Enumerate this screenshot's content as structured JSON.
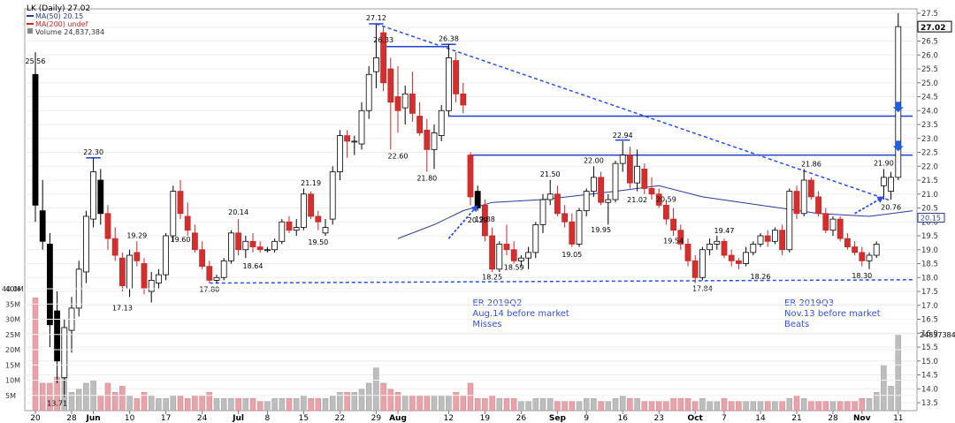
{
  "chart_data": {
    "type": "candlestick",
    "title": "LK (Daily) 27.02",
    "legend": [
      {
        "name": "MA(50) 20.15",
        "color": "#2b3a8f"
      },
      {
        "name": "MA(200) undef",
        "color": "#c62828"
      },
      {
        "name": "Volume 24,837,384",
        "color": "#888888"
      }
    ],
    "price_axis": {
      "min": 13.5,
      "max": 27.5,
      "step": 0.5,
      "side": "right"
    },
    "volume_axis": {
      "max": 40,
      "ticks": [
        "5M",
        "10M",
        "15M",
        "20M",
        "25M",
        "30M",
        "35M",
        "40M"
      ]
    },
    "x_labels": [
      {
        "label": "20",
        "i": 0
      },
      {
        "label": "28",
        "i": 5
      },
      {
        "label": "Jun",
        "i": 8
      },
      {
        "label": "10",
        "i": 13
      },
      {
        "label": "17",
        "i": 18
      },
      {
        "label": "24",
        "i": 23
      },
      {
        "label": "Jul",
        "i": 28
      },
      {
        "label": "8",
        "i": 32
      },
      {
        "label": "15",
        "i": 37
      },
      {
        "label": "22",
        "i": 42
      },
      {
        "label": "29",
        "i": 47
      },
      {
        "label": "Aug",
        "i": 50
      },
      {
        "label": "12",
        "i": 57
      },
      {
        "label": "19",
        "i": 62
      },
      {
        "label": "26",
        "i": 67
      },
      {
        "label": "Sep",
        "i": 72
      },
      {
        "label": "9",
        "i": 76
      },
      {
        "label": "16",
        "i": 81
      },
      {
        "label": "23",
        "i": 86
      },
      {
        "label": "Oct",
        "i": 91
      },
      {
        "label": "7",
        "i": 95
      },
      {
        "label": "14",
        "i": 100
      },
      {
        "label": "21",
        "i": 105
      },
      {
        "label": "28",
        "i": 110
      },
      {
        "label": "Nov",
        "i": 114
      },
      {
        "label": "11",
        "i": 119
      }
    ],
    "candles": [
      [
        25.3,
        26.1,
        20.0,
        20.6,
        1
      ],
      [
        20.4,
        21.5,
        19.0,
        19.3,
        1
      ],
      [
        19.2,
        19.6,
        15.5,
        16.3,
        1
      ],
      [
        16.8,
        17.5,
        14.2,
        15.0,
        1
      ],
      [
        14.4,
        16.5,
        13.7,
        16.2,
        0
      ],
      [
        16.1,
        17.3,
        15.3,
        16.9,
        0
      ],
      [
        16.9,
        18.6,
        16.6,
        18.3,
        0
      ],
      [
        18.2,
        20.4,
        17.8,
        20.2,
        0
      ],
      [
        20.1,
        22.3,
        19.8,
        21.8,
        1
      ],
      [
        21.5,
        21.9,
        19.9,
        20.3,
        1
      ],
      [
        20.3,
        20.6,
        19.0,
        19.4,
        1
      ],
      [
        19.4,
        19.8,
        18.6,
        18.8,
        1
      ],
      [
        18.7,
        18.9,
        17.5,
        17.7,
        1
      ],
      [
        17.6,
        19.0,
        17.3,
        18.8,
        0
      ],
      [
        18.9,
        19.3,
        18.4,
        18.6,
        1
      ],
      [
        18.5,
        18.7,
        17.4,
        17.6,
        1
      ],
      [
        17.5,
        18.2,
        17.1,
        17.9,
        0
      ],
      [
        17.8,
        18.3,
        17.6,
        18.1,
        0
      ],
      [
        18.1,
        19.6,
        17.9,
        19.5,
        0
      ],
      [
        19.5,
        21.3,
        19.3,
        21.1,
        0
      ],
      [
        21.1,
        21.5,
        20.1,
        20.3,
        1
      ],
      [
        20.2,
        20.7,
        19.5,
        19.7,
        1
      ],
      [
        19.6,
        19.9,
        18.9,
        19.0,
        1
      ],
      [
        19.0,
        19.3,
        18.3,
        18.4,
        1
      ],
      [
        18.4,
        18.6,
        17.8,
        17.9,
        1
      ],
      [
        17.9,
        18.1,
        17.8,
        18.0,
        0
      ],
      [
        18.0,
        18.7,
        17.9,
        18.6,
        0
      ],
      [
        18.6,
        19.7,
        18.5,
        19.6,
        0
      ],
      [
        19.6,
        20.1,
        18.8,
        19.0,
        1
      ],
      [
        19.0,
        19.5,
        18.7,
        19.3,
        0
      ],
      [
        19.3,
        19.6,
        18.9,
        19.1,
        1
      ],
      [
        19.1,
        19.3,
        18.9,
        19.0,
        1
      ],
      [
        19.0,
        19.1,
        18.9,
        19.0,
        0
      ],
      [
        19.0,
        19.4,
        18.9,
        19.3,
        0
      ],
      [
        19.3,
        20.1,
        19.2,
        20.0,
        0
      ],
      [
        20.0,
        20.2,
        19.6,
        19.7,
        1
      ],
      [
        19.7,
        20.1,
        19.5,
        19.8,
        0
      ],
      [
        19.8,
        21.2,
        19.7,
        21.0,
        0
      ],
      [
        21.0,
        21.1,
        20.1,
        20.2,
        1
      ],
      [
        20.2,
        20.4,
        19.7,
        20.0,
        1
      ],
      [
        19.6,
        20.1,
        19.5,
        19.8,
        0
      ],
      [
        20.1,
        22.0,
        19.9,
        21.8,
        0
      ],
      [
        21.8,
        23.3,
        21.5,
        23.1,
        0
      ],
      [
        23.1,
        23.3,
        22.3,
        22.9,
        1
      ],
      [
        22.9,
        23.1,
        22.4,
        22.9,
        0
      ],
      [
        22.8,
        24.3,
        22.6,
        24.0,
        0
      ],
      [
        24.0,
        25.6,
        23.7,
        25.3,
        0
      ],
      [
        25.4,
        27.1,
        24.8,
        25.9,
        0
      ],
      [
        26.8,
        27.0,
        24.7,
        25.0,
        1
      ],
      [
        25.5,
        25.9,
        22.6,
        24.3,
        1
      ],
      [
        24.5,
        25.6,
        23.2,
        24.0,
        1
      ],
      [
        24.1,
        24.9,
        23.5,
        24.6,
        0
      ],
      [
        24.6,
        25.4,
        23.6,
        23.9,
        1
      ],
      [
        23.8,
        24.3,
        23.1,
        23.2,
        1
      ],
      [
        23.3,
        23.7,
        21.8,
        22.6,
        1
      ],
      [
        22.6,
        23.5,
        21.9,
        23.2,
        0
      ],
      [
        23.1,
        24.2,
        22.9,
        24.0,
        0
      ],
      [
        24.0,
        26.4,
        23.8,
        25.9,
        0
      ],
      [
        25.8,
        26.1,
        24.3,
        24.6,
        1
      ],
      [
        24.6,
        25.0,
        23.9,
        24.2,
        1
      ],
      [
        22.4,
        22.5,
        20.6,
        20.9,
        1
      ],
      [
        21.1,
        21.3,
        20.4,
        20.5,
        0
      ],
      [
        20.6,
        20.8,
        19.3,
        19.5,
        1
      ],
      [
        19.5,
        19.8,
        18.2,
        18.3,
        1
      ],
      [
        18.3,
        19.3,
        18.2,
        19.2,
        0
      ],
      [
        19.2,
        19.9,
        18.8,
        19.0,
        1
      ],
      [
        19.0,
        19.3,
        18.5,
        18.6,
        1
      ],
      [
        18.6,
        18.8,
        18.4,
        18.7,
        0
      ],
      [
        18.7,
        19.1,
        18.3,
        18.9,
        0
      ],
      [
        18.9,
        20.0,
        18.7,
        19.9,
        0
      ],
      [
        19.9,
        21.0,
        19.6,
        20.8,
        0
      ],
      [
        20.8,
        21.5,
        20.6,
        21.0,
        0
      ],
      [
        21.0,
        21.3,
        20.2,
        20.3,
        1
      ],
      [
        20.3,
        20.6,
        19.8,
        20.0,
        1
      ],
      [
        20.0,
        20.3,
        19.1,
        19.2,
        1
      ],
      [
        19.2,
        20.5,
        19.1,
        20.4,
        0
      ],
      [
        20.4,
        21.2,
        20.2,
        21.1,
        0
      ],
      [
        21.1,
        22.0,
        20.9,
        21.6,
        0
      ],
      [
        21.6,
        21.8,
        20.6,
        20.7,
        1
      ],
      [
        20.7,
        21.0,
        19.9,
        20.8,
        0
      ],
      [
        20.8,
        22.2,
        20.7,
        22.1,
        0
      ],
      [
        22.1,
        22.9,
        21.8,
        22.4,
        0
      ],
      [
        22.4,
        22.7,
        21.2,
        21.4,
        1
      ],
      [
        21.4,
        22.6,
        21.1,
        22.0,
        0
      ],
      [
        21.9,
        22.1,
        21.0,
        21.2,
        1
      ],
      [
        21.2,
        21.6,
        20.8,
        21.0,
        1
      ],
      [
        21.0,
        21.2,
        20.5,
        20.6,
        1
      ],
      [
        20.6,
        20.8,
        19.9,
        20.1,
        1
      ],
      [
        20.1,
        20.5,
        19.5,
        19.7,
        1
      ],
      [
        19.7,
        19.9,
        19.0,
        19.2,
        1
      ],
      [
        19.2,
        19.4,
        18.4,
        18.6,
        1
      ],
      [
        18.6,
        18.8,
        17.8,
        18.0,
        1
      ],
      [
        18.0,
        19.1,
        17.9,
        19.0,
        0
      ],
      [
        19.0,
        19.4,
        18.8,
        19.2,
        0
      ],
      [
        19.2,
        19.5,
        19.0,
        19.3,
        0
      ],
      [
        19.3,
        19.4,
        18.7,
        18.8,
        1
      ],
      [
        18.8,
        19.0,
        18.4,
        18.6,
        1
      ],
      [
        18.6,
        18.7,
        18.3,
        18.5,
        1
      ],
      [
        18.5,
        19.1,
        18.4,
        18.9,
        0
      ],
      [
        18.9,
        19.3,
        18.8,
        19.2,
        0
      ],
      [
        19.2,
        19.6,
        19.1,
        19.5,
        0
      ],
      [
        19.5,
        19.7,
        19.1,
        19.3,
        1
      ],
      [
        19.3,
        19.8,
        19.2,
        19.7,
        0
      ],
      [
        19.7,
        19.9,
        18.8,
        19.0,
        1
      ],
      [
        19.0,
        21.2,
        18.9,
        21.1,
        0
      ],
      [
        21.1,
        21.3,
        20.1,
        20.3,
        1
      ],
      [
        20.3,
        21.9,
        20.2,
        21.5,
        0
      ],
      [
        21.5,
        21.6,
        20.8,
        20.9,
        1
      ],
      [
        20.9,
        21.1,
        20.2,
        20.3,
        1
      ],
      [
        20.3,
        20.5,
        19.6,
        19.7,
        1
      ],
      [
        19.7,
        20.2,
        19.5,
        20.1,
        0
      ],
      [
        20.1,
        20.2,
        19.3,
        19.4,
        1
      ],
      [
        19.4,
        19.6,
        19.0,
        19.1,
        1
      ],
      [
        19.1,
        19.3,
        18.8,
        18.9,
        1
      ],
      [
        18.9,
        19.1,
        18.4,
        18.6,
        1
      ],
      [
        18.6,
        18.9,
        18.3,
        18.8,
        0
      ],
      [
        18.8,
        19.3,
        18.7,
        19.2,
        0
      ],
      [
        21.3,
        21.9,
        20.8,
        21.6,
        1
      ],
      [
        21.1,
        21.8,
        20.8,
        21.6,
        0
      ],
      [
        21.6,
        27.5,
        21.5,
        27.02,
        0
      ]
    ],
    "volumes": [
      37,
      9,
      9,
      11,
      13,
      6,
      7,
      9,
      10,
      5,
      9,
      6,
      8,
      5,
      4,
      6,
      5,
      4,
      4,
      5,
      5,
      4,
      5,
      5,
      6,
      4,
      4,
      4,
      4,
      4,
      4,
      3,
      3,
      4,
      4,
      4,
      4,
      5,
      4,
      4,
      4,
      5,
      6,
      6,
      6,
      7,
      9,
      14,
      9,
      7,
      6,
      5,
      5,
      5,
      5,
      5,
      5,
      5,
      6,
      5,
      9,
      4,
      4,
      5,
      4,
      4,
      4,
      3,
      3,
      4,
      4,
      4,
      3,
      3,
      3,
      3,
      4,
      4,
      3,
      3,
      4,
      5,
      4,
      4,
      3,
      3,
      3,
      3,
      4,
      4,
      4,
      3,
      4,
      3,
      3,
      4,
      3,
      3,
      3,
      3,
      3,
      3,
      3,
      3,
      4,
      5,
      4,
      3,
      3,
      3,
      3,
      3,
      3,
      3,
      4,
      4,
      6,
      15,
      8,
      25
    ],
    "price_labels": [
      {
        "text": "27.12",
        "i": 47,
        "v": 27.12,
        "pos": "above"
      },
      {
        "text": "26.33",
        "i": 48,
        "v": 26.33,
        "pos": "above"
      },
      {
        "text": "26.38",
        "i": 57,
        "v": 26.38,
        "pos": "above"
      },
      {
        "text": "22.30",
        "i": 8,
        "v": 22.3,
        "pos": "above"
      },
      {
        "text": "22.94",
        "i": 81,
        "v": 22.9,
        "pos": "above"
      },
      {
        "text": "22.00",
        "i": 77,
        "v": 22.0,
        "pos": "above"
      },
      {
        "text": "21.86",
        "i": 107,
        "v": 21.86,
        "pos": "above"
      },
      {
        "text": "21.90",
        "i": 117,
        "v": 21.9,
        "pos": "above"
      },
      {
        "text": "21.50",
        "i": 71,
        "v": 21.5,
        "pos": "above"
      },
      {
        "text": "21.19",
        "i": 38,
        "v": 21.19,
        "pos": "above"
      },
      {
        "text": "20.14",
        "i": 28,
        "v": 20.14,
        "pos": "above"
      },
      {
        "text": "19.88",
        "i": 62,
        "v": 19.88,
        "pos": "above"
      },
      {
        "text": "19.47",
        "i": 95,
        "v": 19.47,
        "pos": "above"
      },
      {
        "text": "19.29",
        "i": 14,
        "v": 19.29,
        "pos": "above"
      },
      {
        "text": "20.59",
        "i": 87,
        "v": 20.59,
        "pos": "above"
      },
      {
        "text": "22.60",
        "i": 50,
        "v": 22.6,
        "pos": "below"
      },
      {
        "text": "21.80",
        "i": 54,
        "v": 21.8,
        "pos": "below"
      },
      {
        "text": "21.02",
        "i": 83,
        "v": 21.02,
        "pos": "below"
      },
      {
        "text": "20.29",
        "i": 61,
        "v": 20.29,
        "pos": "below"
      },
      {
        "text": "19.95",
        "i": 78,
        "v": 19.95,
        "pos": "below"
      },
      {
        "text": "19.60",
        "i": 20,
        "v": 19.6,
        "pos": "below"
      },
      {
        "text": "19.54",
        "i": 88,
        "v": 19.54,
        "pos": "below"
      },
      {
        "text": "19.50",
        "i": 39,
        "v": 19.5,
        "pos": "below"
      },
      {
        "text": "19.05",
        "i": 74,
        "v": 19.05,
        "pos": "below"
      },
      {
        "text": "18.64",
        "i": 30,
        "v": 18.64,
        "pos": "below"
      },
      {
        "text": "18.59",
        "i": 66,
        "v": 18.59,
        "pos": "below"
      },
      {
        "text": "18.25",
        "i": 63,
        "v": 18.25,
        "pos": "below"
      },
      {
        "text": "18.26",
        "i": 100,
        "v": 18.26,
        "pos": "below"
      },
      {
        "text": "18.30",
        "i": 114,
        "v": 18.3,
        "pos": "below"
      },
      {
        "text": "17.80",
        "i": 24,
        "v": 17.8,
        "pos": "below"
      },
      {
        "text": "17.84",
        "i": 92,
        "v": 17.84,
        "pos": "below"
      },
      {
        "text": "17.13",
        "i": 12,
        "v": 17.13,
        "pos": "below"
      },
      {
        "text": "20.76",
        "i": 118,
        "v": 20.76,
        "pos": "below"
      },
      {
        "text": "13.71",
        "i": 3,
        "v": 13.71,
        "pos": "below"
      },
      {
        "text": "25.56",
        "i": 0,
        "v": 25.56,
        "pos": "above"
      }
    ],
    "annotations": [
      {
        "lines": [
          "ER 2019Q2",
          "Aug.14 before market",
          "Misses"
        ],
        "i": 67,
        "v": 17.0
      },
      {
        "lines": [
          "ER 2019Q3",
          "Nov.13 before market",
          "Beats"
        ],
        "i": 110,
        "v": 17.0
      }
    ],
    "levels": [
      {
        "from": 48,
        "to": 57,
        "v": 26.3
      },
      {
        "from": 57,
        "to": 121,
        "v": 23.8
      },
      {
        "from": 60,
        "to": 121,
        "v": 22.4
      }
    ],
    "short_levels": [
      {
        "from": 46,
        "to": 48,
        "v": 27.12
      },
      {
        "from": 56,
        "to": 58,
        "v": 26.38
      },
      {
        "from": 7,
        "to": 9,
        "v": 22.3
      },
      {
        "from": 80,
        "to": 82,
        "v": 22.94
      }
    ],
    "trend_lines": [
      {
        "i1": 47,
        "v1": 27.12,
        "i2": 118,
        "v2": 20.76
      },
      {
        "i1": 24,
        "v1": 17.8,
        "i2": 121,
        "v2": 17.92
      }
    ],
    "ma50": [
      [
        50,
        19.4
      ],
      [
        55,
        19.9
      ],
      [
        59,
        20.4
      ],
      [
        63,
        20.7
      ],
      [
        70,
        20.8
      ],
      [
        80,
        21.1
      ],
      [
        86,
        21.3
      ],
      [
        92,
        20.9
      ],
      [
        100,
        20.6
      ],
      [
        108,
        20.3
      ],
      [
        115,
        20.2
      ],
      [
        121,
        20.4
      ]
    ],
    "markers": [
      {
        "type": "down-arrow",
        "i": 119,
        "v": 24.0
      },
      {
        "type": "down-arrow",
        "i": 119,
        "v": 22.6
      },
      {
        "type": "dashed-arrow",
        "from_i": 57,
        "from_v": 19.4,
        "to_i": 61,
        "to_v": 20.6
      },
      {
        "type": "dashed-arrow",
        "from_i": 113,
        "from_v": 20.3,
        "to_i": 117,
        "to_v": 20.9
      }
    ],
    "last_price": "27.02",
    "ma_value_label": "20.15",
    "volume_label": "24837384",
    "volume_left_label": "40.0M"
  }
}
